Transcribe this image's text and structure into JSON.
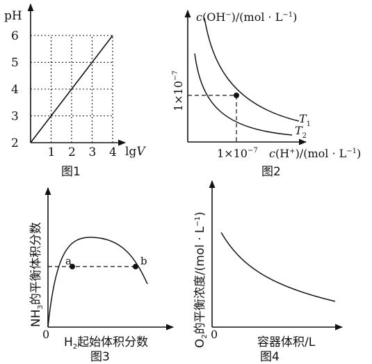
{
  "chart_data": [
    {
      "type": "line",
      "title": "",
      "caption": "图1",
      "xlabel_html": "lgV",
      "ylabel": "pH",
      "x_ticks": [
        "1",
        "2",
        "3",
        "4"
      ],
      "y_ticks": [
        "2",
        "3",
        "4",
        "5",
        "6"
      ],
      "xlim": [
        0,
        4
      ],
      "ylim": [
        2,
        6
      ],
      "grid": "dotted",
      "series": [
        {
          "x": [
            0,
            4
          ],
          "y": [
            2,
            6
          ]
        }
      ]
    },
    {
      "type": "line",
      "title": "",
      "caption": "图2",
      "ylabel": "c(OH⁻)/(mol · L⁻¹)",
      "xlabel": "c(H⁺)/(mol · L⁻¹)",
      "x_tick": "1×10⁻⁷",
      "y_tick": "1×10⁻⁷",
      "curves": [
        {
          "name": "T₁",
          "relation": "c(H⁺)·c(OH⁻) = Kw(T₁)"
        },
        {
          "name": "T₂",
          "relation": "c(H⁺)·c(OH⁻) = Kw(T₂)"
        }
      ],
      "marked_point": {
        "x": "1×10⁻⁷",
        "y": "1×10⁻⁷",
        "on": "T₁"
      }
    },
    {
      "type": "line",
      "title": "",
      "caption": "图3",
      "xlabel": "H₂起始体积分数",
      "ylabel": "NH₃的平衡体积分数",
      "origin_label": "0",
      "points": [
        {
          "label": "a"
        },
        {
          "label": "b"
        }
      ],
      "note": "curve rises to a maximum then falls; a and b lie on a horizontal dashed line"
    },
    {
      "type": "line",
      "title": "",
      "caption": "图4",
      "xlabel": "容器体积/L",
      "ylabel": "O₂的平衡浓度/(mol · L⁻¹)",
      "origin_label": "0",
      "note": "decreasing curve"
    }
  ]
}
